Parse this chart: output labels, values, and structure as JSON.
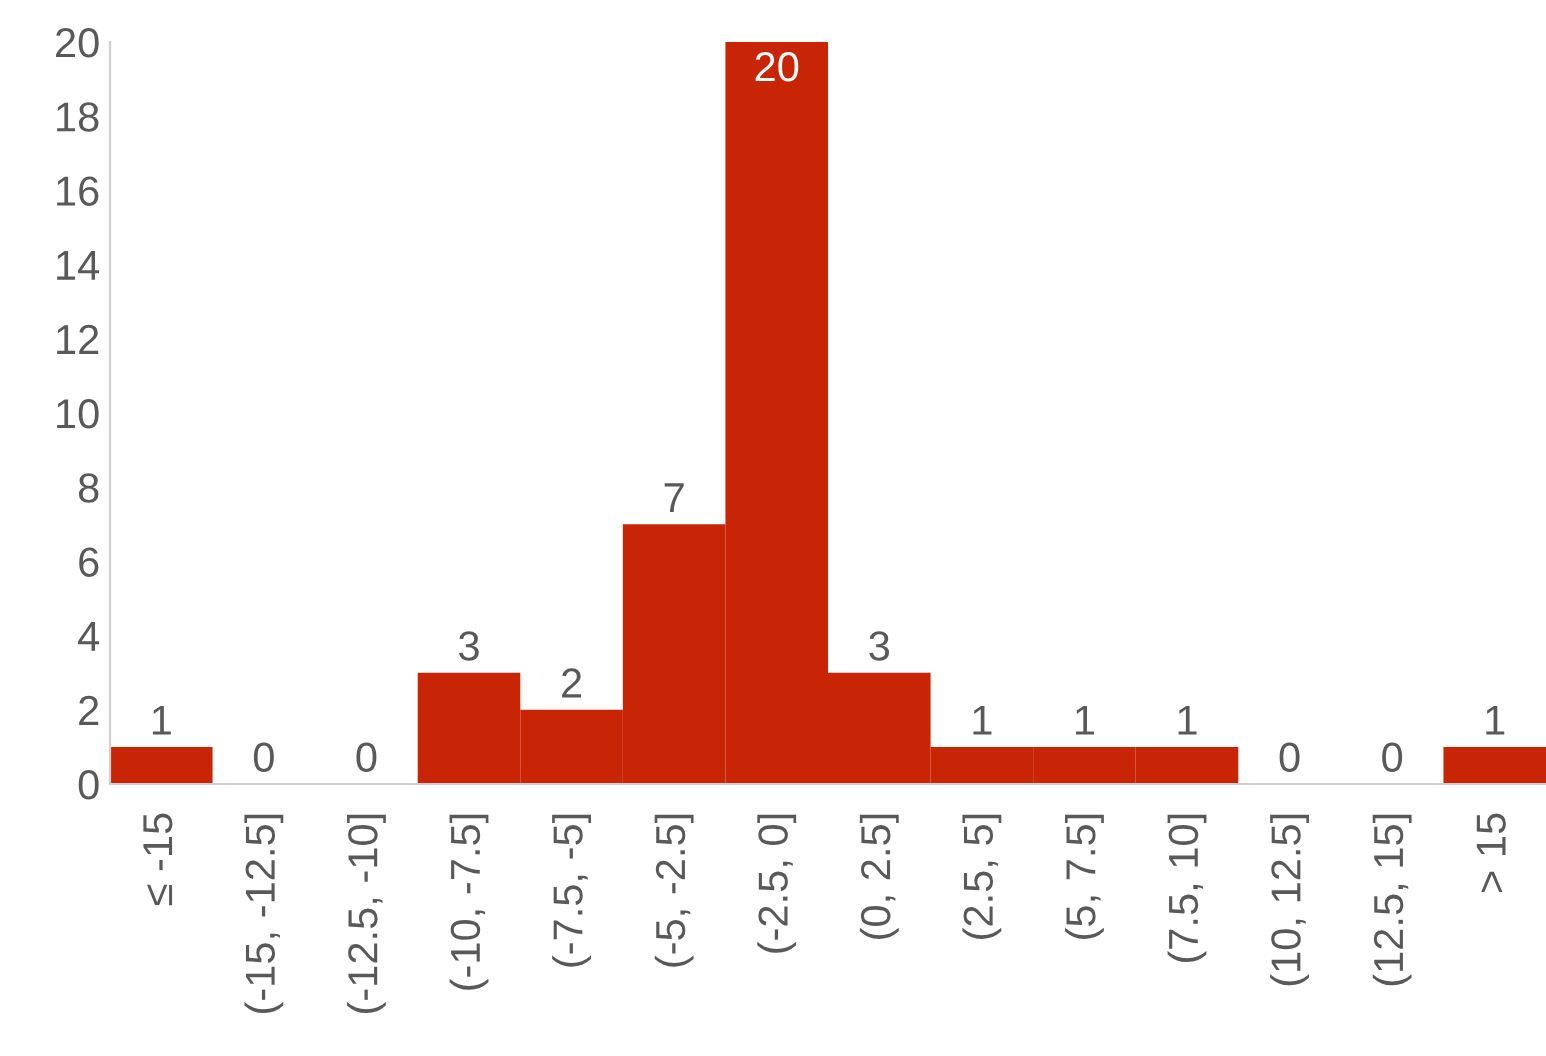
{
  "chart_data": {
    "type": "bar",
    "categories": [
      "≤ -15",
      "(-15, -12.5]",
      "(-12.5, -10]",
      "(-10, -7.5]",
      "(-7.5, -5]",
      "(-5, -2.5]",
      "(-2.5, 0]",
      "(0, 2.5]",
      "(2.5, 5]",
      "(5, 7.5]",
      "(7.5, 10]",
      "(10, 12.5]",
      "(12.5, 15]",
      "> 15"
    ],
    "values": [
      1,
      0,
      0,
      3,
      2,
      7,
      20,
      3,
      1,
      1,
      1,
      0,
      0,
      1
    ],
    "color": "#c82506",
    "ylim": [
      0,
      20
    ],
    "yticks": [
      0,
      2,
      4,
      6,
      8,
      10,
      12,
      14,
      16,
      18,
      20
    ],
    "grid": false,
    "data_labels": true,
    "legend": false
  }
}
